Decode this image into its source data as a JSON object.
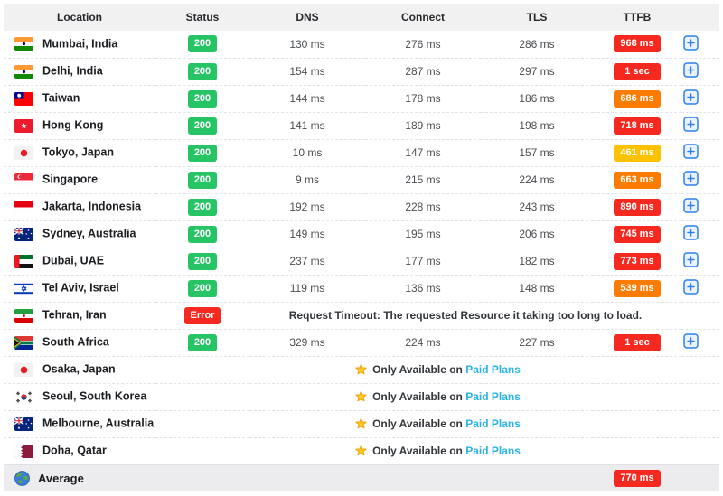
{
  "header": {
    "columns": [
      "Location",
      "Status",
      "DNS",
      "Connect",
      "TLS",
      "TTFB",
      ""
    ]
  },
  "rows": [
    {
      "type": "data",
      "flag": "in",
      "location": "Mumbai, India",
      "status": "200",
      "status_type": "ok",
      "dns": "130 ms",
      "connect": "276 ms",
      "tls": "286 ms",
      "ttfb": "968 ms",
      "ttfb_level": "red",
      "expandable": true
    },
    {
      "type": "data",
      "flag": "in",
      "location": "Delhi, India",
      "status": "200",
      "status_type": "ok",
      "dns": "154 ms",
      "connect": "287 ms",
      "tls": "297 ms",
      "ttfb": "1 sec",
      "ttfb_level": "red",
      "expandable": true
    },
    {
      "type": "data",
      "flag": "tw",
      "location": "Taiwan",
      "status": "200",
      "status_type": "ok",
      "dns": "144 ms",
      "connect": "178 ms",
      "tls": "186 ms",
      "ttfb": "686 ms",
      "ttfb_level": "orange",
      "expandable": true
    },
    {
      "type": "data",
      "flag": "hk",
      "location": "Hong Kong",
      "status": "200",
      "status_type": "ok",
      "dns": "141 ms",
      "connect": "189 ms",
      "tls": "198 ms",
      "ttfb": "718 ms",
      "ttfb_level": "red",
      "expandable": true
    },
    {
      "type": "data",
      "flag": "jp",
      "location": "Tokyo, Japan",
      "status": "200",
      "status_type": "ok",
      "dns": "10 ms",
      "connect": "147 ms",
      "tls": "157 ms",
      "ttfb": "461 ms",
      "ttfb_level": "amber",
      "expandable": true
    },
    {
      "type": "data",
      "flag": "sg",
      "location": "Singapore",
      "status": "200",
      "status_type": "ok",
      "dns": "9 ms",
      "connect": "215 ms",
      "tls": "224 ms",
      "ttfb": "663 ms",
      "ttfb_level": "orange",
      "expandable": true
    },
    {
      "type": "data",
      "flag": "id",
      "location": "Jakarta, Indonesia",
      "status": "200",
      "status_type": "ok",
      "dns": "192 ms",
      "connect": "228 ms",
      "tls": "243 ms",
      "ttfb": "890 ms",
      "ttfb_level": "red",
      "expandable": true
    },
    {
      "type": "data",
      "flag": "au",
      "location": "Sydney, Australia",
      "status": "200",
      "status_type": "ok",
      "dns": "149 ms",
      "connect": "195 ms",
      "tls": "206 ms",
      "ttfb": "745 ms",
      "ttfb_level": "red",
      "expandable": true
    },
    {
      "type": "data",
      "flag": "ae",
      "location": "Dubai, UAE",
      "status": "200",
      "status_type": "ok",
      "dns": "237 ms",
      "connect": "177 ms",
      "tls": "182 ms",
      "ttfb": "773 ms",
      "ttfb_level": "red",
      "expandable": true
    },
    {
      "type": "data",
      "flag": "il",
      "location": "Tel Aviv, Israel",
      "status": "200",
      "status_type": "ok",
      "dns": "119 ms",
      "connect": "136 ms",
      "tls": "148 ms",
      "ttfb": "539 ms",
      "ttfb_level": "orange",
      "expandable": true
    },
    {
      "type": "error",
      "flag": "ir",
      "location": "Tehran, Iran",
      "status": "Error",
      "status_type": "error",
      "message": "Request Timeout: The requested Resource it taking too long to load."
    },
    {
      "type": "data",
      "flag": "za",
      "location": "South Africa",
      "status": "200",
      "status_type": "ok",
      "dns": "329 ms",
      "connect": "224 ms",
      "tls": "227 ms",
      "ttfb": "1 sec",
      "ttfb_level": "red",
      "expandable": true
    },
    {
      "type": "paid",
      "flag": "jp",
      "location": "Osaka, Japan",
      "paid_prefix": "Only Available on",
      "paid_link": "Paid Plans"
    },
    {
      "type": "paid",
      "flag": "kr",
      "location": "Seoul, South Korea",
      "paid_prefix": "Only Available on",
      "paid_link": "Paid Plans"
    },
    {
      "type": "paid",
      "flag": "au",
      "location": "Melbourne, Australia",
      "paid_prefix": "Only Available on",
      "paid_link": "Paid Plans"
    },
    {
      "type": "paid",
      "flag": "qa",
      "location": "Doha, Qatar",
      "paid_prefix": "Only Available on",
      "paid_link": "Paid Plans"
    }
  ],
  "average": {
    "label": "Average",
    "ttfb": "770 ms",
    "ttfb_level": "red",
    "icon": "globe-icon"
  },
  "icons": {
    "expand": "plus-square-icon",
    "paid": "star-icon",
    "average": "globe-icon"
  },
  "colors": {
    "status_ok": "#26c465",
    "status_error": "#f5291f",
    "ttfb_red": "#f5291f",
    "ttfb_orange": "#fb7c00",
    "ttfb_amber": "#fcc200",
    "paid_link": "#29b3e6",
    "expand_icon": "#2d7ff0",
    "header_bg": "#f1f1f2",
    "average_bg": "#ececee"
  }
}
